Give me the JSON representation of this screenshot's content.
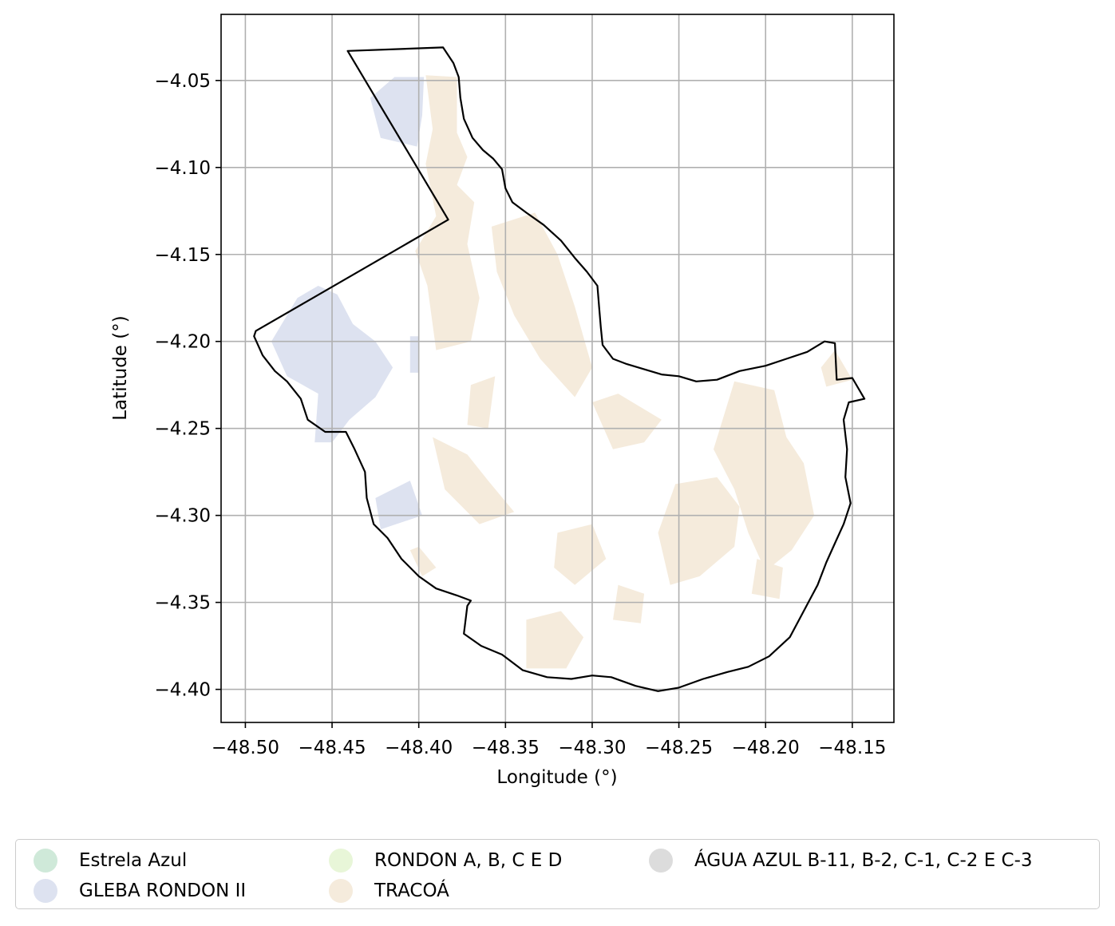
{
  "chart_data": {
    "type": "map",
    "xlabel": "Longitude (°)",
    "ylabel": "Latitude (°)",
    "xlim": [
      -48.514,
      -48.126
    ],
    "ylim": [
      -4.419,
      -4.012
    ],
    "xticks": [
      -48.5,
      -48.45,
      -48.4,
      -48.35,
      -48.3,
      -48.25,
      -48.2,
      -48.15
    ],
    "yticks": [
      -4.05,
      -4.1,
      -4.15,
      -4.2,
      -4.25,
      -4.3,
      -4.35,
      -4.4
    ],
    "xtick_labels": [
      "−48.50",
      "−48.45",
      "−48.40",
      "−48.35",
      "−48.30",
      "−48.25",
      "−48.20",
      "−48.15"
    ],
    "ytick_labels": [
      "−4.05",
      "−4.10",
      "−4.15",
      "−4.20",
      "−4.25",
      "−4.30",
      "−4.35",
      "−4.40"
    ],
    "grid": true,
    "legend_position": "below",
    "boundary": [
      [
        -48.441,
        -4.033
      ],
      [
        -48.386,
        -4.031
      ],
      [
        -48.38,
        -4.04
      ],
      [
        -48.377,
        -4.048
      ],
      [
        -48.376,
        -4.06
      ],
      [
        -48.374,
        -4.072
      ],
      [
        -48.369,
        -4.083
      ],
      [
        -48.363,
        -4.09
      ],
      [
        -48.357,
        -4.095
      ],
      [
        -48.352,
        -4.101
      ],
      [
        -48.35,
        -4.112
      ],
      [
        -48.346,
        -4.12
      ],
      [
        -48.338,
        -4.126
      ],
      [
        -48.328,
        -4.133
      ],
      [
        -48.318,
        -4.142
      ],
      [
        -48.31,
        -4.152
      ],
      [
        -48.303,
        -4.16
      ],
      [
        -48.297,
        -4.168
      ],
      [
        -48.296,
        -4.18
      ],
      [
        -48.295,
        -4.192
      ],
      [
        -48.294,
        -4.202
      ],
      [
        -48.288,
        -4.21
      ],
      [
        -48.28,
        -4.213
      ],
      [
        -48.27,
        -4.216
      ],
      [
        -48.26,
        -4.219
      ],
      [
        -48.25,
        -4.22
      ],
      [
        -48.24,
        -4.223
      ],
      [
        -48.228,
        -4.222
      ],
      [
        -48.215,
        -4.217
      ],
      [
        -48.2,
        -4.214
      ],
      [
        -48.188,
        -4.21
      ],
      [
        -48.176,
        -4.206
      ],
      [
        -48.166,
        -4.2
      ],
      [
        -48.16,
        -4.201
      ],
      [
        -48.159,
        -4.222
      ],
      [
        -48.15,
        -4.221
      ],
      [
        -48.143,
        -4.233
      ],
      [
        -48.152,
        -4.235
      ],
      [
        -48.155,
        -4.245
      ],
      [
        -48.153,
        -4.262
      ],
      [
        -48.154,
        -4.278
      ],
      [
        -48.151,
        -4.293
      ],
      [
        -48.155,
        -4.305
      ],
      [
        -48.16,
        -4.316
      ],
      [
        -48.165,
        -4.327
      ],
      [
        -48.17,
        -4.34
      ],
      [
        -48.178,
        -4.355
      ],
      [
        -48.186,
        -4.37
      ],
      [
        -48.198,
        -4.381
      ],
      [
        -48.21,
        -4.387
      ],
      [
        -48.222,
        -4.39
      ],
      [
        -48.236,
        -4.394
      ],
      [
        -48.25,
        -4.399
      ],
      [
        -48.262,
        -4.401
      ],
      [
        -48.275,
        -4.398
      ],
      [
        -48.289,
        -4.393
      ],
      [
        -48.3,
        -4.392
      ],
      [
        -48.312,
        -4.394
      ],
      [
        -48.326,
        -4.393
      ],
      [
        -48.34,
        -4.389
      ],
      [
        -48.352,
        -4.38
      ],
      [
        -48.364,
        -4.375
      ],
      [
        -48.374,
        -4.368
      ],
      [
        -48.372,
        -4.352
      ],
      [
        -48.37,
        -4.349
      ],
      [
        -48.378,
        -4.346
      ],
      [
        -48.39,
        -4.342
      ],
      [
        -48.4,
        -4.335
      ],
      [
        -48.41,
        -4.325
      ],
      [
        -48.418,
        -4.313
      ],
      [
        -48.426,
        -4.305
      ],
      [
        -48.43,
        -4.29
      ],
      [
        -48.431,
        -4.275
      ],
      [
        -48.437,
        -4.262
      ],
      [
        -48.442,
        -4.252
      ],
      [
        -48.454,
        -4.252
      ],
      [
        -48.464,
        -4.245
      ],
      [
        -48.468,
        -4.233
      ],
      [
        -48.476,
        -4.223
      ],
      [
        -48.483,
        -4.217
      ],
      [
        -48.49,
        -4.208
      ],
      [
        -48.495,
        -4.197
      ],
      [
        -48.494,
        -4.194
      ],
      [
        -48.383,
        -4.13
      ],
      [
        -48.441,
        -4.033
      ]
    ],
    "series": [
      {
        "name": "Estrela Azul",
        "color": "#cfe9d9",
        "shapes": []
      },
      {
        "name": "GLEBA RONDON II",
        "color": "#dde2f0",
        "shapes": [
          [
            [
              -48.414,
              -4.048
            ],
            [
              -48.397,
              -4.048
            ],
            [
              -48.398,
              -4.07
            ],
            [
              -48.401,
              -4.088
            ],
            [
              -48.422,
              -4.083
            ],
            [
              -48.428,
              -4.06
            ]
          ],
          [
            [
              -48.485,
              -4.2
            ],
            [
              -48.47,
              -4.175
            ],
            [
              -48.458,
              -4.168
            ],
            [
              -48.447,
              -4.173
            ],
            [
              -48.438,
              -4.19
            ],
            [
              -48.425,
              -4.2
            ],
            [
              -48.415,
              -4.215
            ],
            [
              -48.425,
              -4.232
            ],
            [
              -48.44,
              -4.245
            ],
            [
              -48.45,
              -4.258
            ],
            [
              -48.46,
              -4.258
            ],
            [
              -48.458,
              -4.23
            ],
            [
              -48.476,
              -4.22
            ]
          ],
          [
            [
              -48.405,
              -4.197
            ],
            [
              -48.4,
              -4.197
            ],
            [
              -48.4,
              -4.218
            ],
            [
              -48.405,
              -4.218
            ]
          ],
          [
            [
              -48.425,
              -4.29
            ],
            [
              -48.405,
              -4.28
            ],
            [
              -48.398,
              -4.3
            ],
            [
              -48.422,
              -4.308
            ]
          ]
        ]
      },
      {
        "name": "RONDON A, B, C E D",
        "color": "#e8f6d8",
        "shapes": []
      },
      {
        "name": "TRACOÁ",
        "color": "#f5ebdc",
        "shapes": [
          [
            [
              -48.396,
              -4.047
            ],
            [
              -48.378,
              -4.048
            ],
            [
              -48.378,
              -4.08
            ],
            [
              -48.372,
              -4.094
            ],
            [
              -48.378,
              -4.11
            ],
            [
              -48.368,
              -4.12
            ],
            [
              -48.372,
              -4.144
            ],
            [
              -48.365,
              -4.175
            ],
            [
              -48.37,
              -4.2
            ],
            [
              -48.39,
              -4.205
            ],
            [
              -48.395,
              -4.168
            ],
            [
              -48.402,
              -4.148
            ],
            [
              -48.39,
              -4.128
            ],
            [
              -48.396,
              -4.098
            ],
            [
              -48.392,
              -4.078
            ]
          ],
          [
            [
              -48.358,
              -4.134
            ],
            [
              -48.333,
              -4.126
            ],
            [
              -48.32,
              -4.15
            ],
            [
              -48.31,
              -4.18
            ],
            [
              -48.3,
              -4.215
            ],
            [
              -48.31,
              -4.232
            ],
            [
              -48.33,
              -4.21
            ],
            [
              -48.345,
              -4.185
            ],
            [
              -48.355,
              -4.16
            ]
          ],
          [
            [
              -48.37,
              -4.225
            ],
            [
              -48.356,
              -4.22
            ],
            [
              -48.36,
              -4.25
            ],
            [
              -48.372,
              -4.248
            ]
          ],
          [
            [
              -48.392,
              -4.255
            ],
            [
              -48.372,
              -4.265
            ],
            [
              -48.36,
              -4.28
            ],
            [
              -48.345,
              -4.298
            ],
            [
              -48.365,
              -4.305
            ],
            [
              -48.385,
              -4.285
            ]
          ],
          [
            [
              -48.3,
              -4.235
            ],
            [
              -48.285,
              -4.23
            ],
            [
              -48.26,
              -4.245
            ],
            [
              -48.27,
              -4.258
            ],
            [
              -48.288,
              -4.262
            ]
          ],
          [
            [
              -48.218,
              -4.223
            ],
            [
              -48.195,
              -4.228
            ],
            [
              -48.188,
              -4.255
            ],
            [
              -48.178,
              -4.27
            ],
            [
              -48.172,
              -4.3
            ],
            [
              -48.185,
              -4.32
            ],
            [
              -48.2,
              -4.332
            ],
            [
              -48.21,
              -4.31
            ],
            [
              -48.218,
              -4.285
            ],
            [
              -48.23,
              -4.262
            ]
          ],
          [
            [
              -48.252,
              -4.282
            ],
            [
              -48.228,
              -4.278
            ],
            [
              -48.215,
              -4.295
            ],
            [
              -48.218,
              -4.318
            ],
            [
              -48.238,
              -4.335
            ],
            [
              -48.255,
              -4.34
            ],
            [
              -48.262,
              -4.31
            ]
          ],
          [
            [
              -48.32,
              -4.31
            ],
            [
              -48.3,
              -4.305
            ],
            [
              -48.292,
              -4.325
            ],
            [
              -48.31,
              -4.34
            ],
            [
              -48.322,
              -4.33
            ]
          ],
          [
            [
              -48.338,
              -4.36
            ],
            [
              -48.318,
              -4.355
            ],
            [
              -48.305,
              -4.37
            ],
            [
              -48.315,
              -4.388
            ],
            [
              -48.338,
              -4.388
            ]
          ],
          [
            [
              -48.285,
              -4.34
            ],
            [
              -48.27,
              -4.345
            ],
            [
              -48.272,
              -4.362
            ],
            [
              -48.288,
              -4.36
            ]
          ],
          [
            [
              -48.205,
              -4.325
            ],
            [
              -48.19,
              -4.33
            ],
            [
              -48.192,
              -4.348
            ],
            [
              -48.208,
              -4.345
            ]
          ],
          [
            [
              -48.168,
              -4.215
            ],
            [
              -48.16,
              -4.205
            ],
            [
              -48.15,
              -4.222
            ],
            [
              -48.165,
              -4.226
            ]
          ],
          [
            [
              -48.405,
              -4.32
            ],
            [
              -48.398,
              -4.335
            ],
            [
              -48.39,
              -4.33
            ],
            [
              -48.4,
              -4.318
            ]
          ]
        ]
      },
      {
        "name": "ÁGUA AZUL B-11, B-2, C-1, C-2 E C-3",
        "color": "#dcdcdc",
        "shapes": []
      }
    ]
  }
}
